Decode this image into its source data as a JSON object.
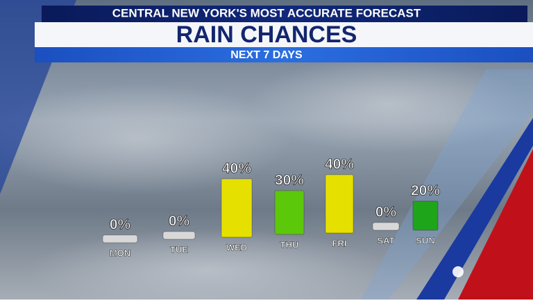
{
  "chart_data": {
    "type": "bar",
    "header": "CENTRAL NEW YORK'S MOST ACCURATE FORECAST",
    "title": "RAIN CHANCES",
    "subtitle": "NEXT 7 DAYS",
    "categories": [
      "MON",
      "TUE",
      "WED",
      "THU",
      "FRI",
      "SAT",
      "SUN"
    ],
    "values": [
      0,
      0,
      40,
      30,
      40,
      0,
      20
    ],
    "value_labels": [
      "0%",
      "0%",
      "40%",
      "30%",
      "40%",
      "0%",
      "20%"
    ],
    "colors": [
      "#d8d8d8",
      "#d8d8d8",
      "#e6e000",
      "#5cc80a",
      "#e6e000",
      "#d8d8d8",
      "#1fa51a"
    ]
  }
}
